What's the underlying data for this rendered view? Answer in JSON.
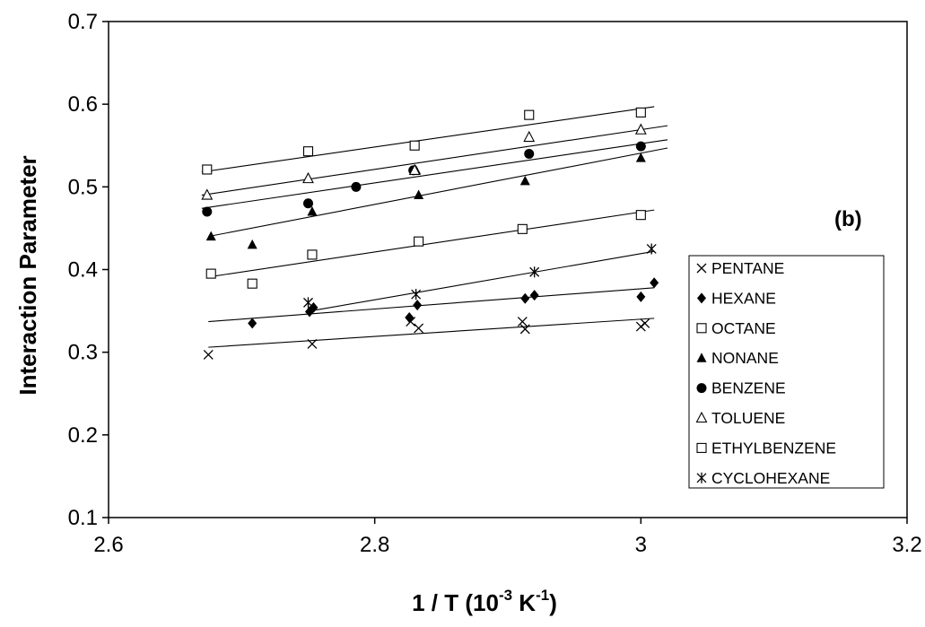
{
  "chart_data": {
    "type": "scatter",
    "panel_label": "(b)",
    "xlabel": {
      "main": "1 / T   (10",
      "exp1": "-3",
      "mid": "  K",
      "exp2": "-1",
      "end": ")"
    },
    "ylabel": "Interaction Parameter",
    "xlim": [
      2.6,
      3.2
    ],
    "ylim": [
      0.1,
      0.7
    ],
    "xticks": [
      2.6,
      2.8,
      3.0,
      3.2
    ],
    "xtick_labels": [
      "2.6",
      "2.8",
      "3",
      "3.2"
    ],
    "yticks": [
      0.1,
      0.2,
      0.3,
      0.4,
      0.5,
      0.6,
      0.7
    ],
    "ytick_labels": [
      "0.1",
      "0.2",
      "0.3",
      "0.4",
      "0.5",
      "0.6",
      "0.7"
    ],
    "grid": false,
    "legend_position": "right",
    "series": [
      {
        "name": "PENTANE",
        "marker": "x",
        "points": [
          [
            2.675,
            0.297
          ],
          [
            2.753,
            0.31
          ],
          [
            2.827,
            0.337
          ],
          [
            2.833,
            0.329
          ],
          [
            2.911,
            0.337
          ],
          [
            2.913,
            0.328
          ],
          [
            3.0,
            0.331
          ],
          [
            3.003,
            0.335
          ]
        ],
        "fit": [
          [
            2.675,
            0.306
          ],
          [
            3.01,
            0.341
          ]
        ]
      },
      {
        "name": "HEXANE",
        "marker": "diamond-filled",
        "points": [
          [
            2.708,
            0.335
          ],
          [
            2.751,
            0.349
          ],
          [
            2.754,
            0.354
          ],
          [
            2.826,
            0.342
          ],
          [
            2.832,
            0.357
          ],
          [
            2.913,
            0.365
          ],
          [
            2.92,
            0.369
          ],
          [
            3.0,
            0.367
          ],
          [
            3.01,
            0.384
          ]
        ],
        "fit": [
          [
            2.675,
            0.337
          ],
          [
            3.01,
            0.378
          ]
        ]
      },
      {
        "name": "OCTANE",
        "marker": "square-open",
        "points": [
          [
            2.674,
            0.521
          ],
          [
            2.75,
            0.543
          ],
          [
            2.83,
            0.55
          ],
          [
            2.916,
            0.587
          ],
          [
            3.0,
            0.59
          ]
        ],
        "fit": [
          [
            2.67,
            0.518
          ],
          [
            3.01,
            0.597
          ]
        ]
      },
      {
        "name": "NONANE",
        "marker": "triangle-filled",
        "points": [
          [
            2.677,
            0.44
          ],
          [
            2.708,
            0.43
          ],
          [
            2.753,
            0.47
          ],
          [
            2.831,
            0.52
          ],
          [
            2.833,
            0.49
          ],
          [
            2.913,
            0.507
          ],
          [
            3.0,
            0.535
          ]
        ],
        "fit": [
          [
            2.675,
            0.44
          ],
          [
            3.02,
            0.547
          ]
        ]
      },
      {
        "name": "BENZENE",
        "marker": "circle-filled",
        "points": [
          [
            2.674,
            0.47
          ],
          [
            2.75,
            0.48
          ],
          [
            2.786,
            0.5
          ],
          [
            2.829,
            0.52
          ],
          [
            2.916,
            0.54
          ],
          [
            3.0,
            0.549
          ]
        ],
        "fit": [
          [
            2.67,
            0.474
          ],
          [
            3.02,
            0.557
          ]
        ]
      },
      {
        "name": "TOLUENE",
        "marker": "triangle-open",
        "points": [
          [
            2.674,
            0.49
          ],
          [
            2.75,
            0.51
          ],
          [
            2.83,
            0.52
          ],
          [
            2.916,
            0.56
          ],
          [
            3.0,
            0.569
          ]
        ],
        "fit": [
          [
            2.67,
            0.49
          ],
          [
            3.02,
            0.574
          ]
        ]
      },
      {
        "name": "ETHYLBENZENE",
        "marker": "square-open",
        "points": [
          [
            2.677,
            0.395
          ],
          [
            2.708,
            0.383
          ],
          [
            2.753,
            0.418
          ],
          [
            2.833,
            0.434
          ],
          [
            2.911,
            0.449
          ],
          [
            3.0,
            0.466
          ]
        ],
        "fit": [
          [
            2.675,
            0.391
          ],
          [
            3.01,
            0.472
          ]
        ]
      },
      {
        "name": "CYCLOHEXANE",
        "marker": "asterisk",
        "points": [
          [
            2.75,
            0.36
          ],
          [
            2.831,
            0.37
          ],
          [
            2.92,
            0.397
          ],
          [
            3.008,
            0.425
          ]
        ],
        "fit": [
          [
            2.752,
            0.35
          ],
          [
            3.01,
            0.422
          ]
        ]
      }
    ]
  }
}
